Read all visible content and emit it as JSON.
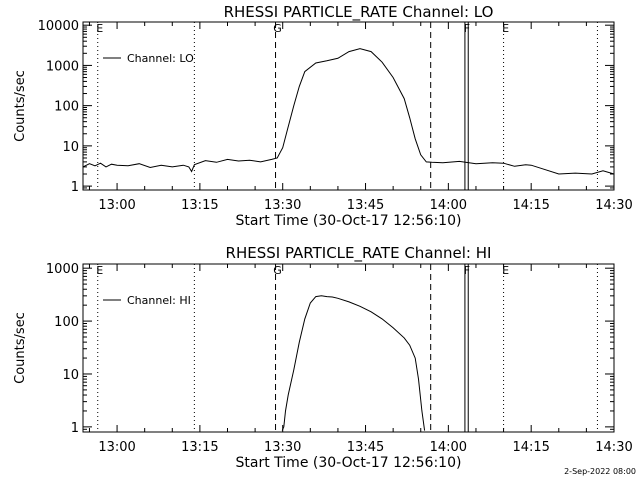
{
  "chart_data": [
    {
      "type": "line",
      "title": "RHESSI PARTICLE_RATE Channel: LO",
      "xlabel": "Start Time (30-Oct-17 12:56:10)",
      "ylabel": "Counts/sec",
      "yscale": "log",
      "xlim_minutes": [
        -6.17,
        90.0
      ],
      "ylim": [
        0.8,
        12000
      ],
      "x_ticks": [
        {
          "minute": 0,
          "label": "13:00"
        },
        {
          "minute": 15,
          "label": "13:15"
        },
        {
          "minute": 30,
          "label": "13:30"
        },
        {
          "minute": 45,
          "label": "13:45"
        },
        {
          "minute": 60,
          "label": "14:00"
        },
        {
          "minute": 75,
          "label": "14:15"
        },
        {
          "minute": 90,
          "label": "14:30"
        }
      ],
      "y_ticks": [
        {
          "value": 1,
          "label": "1"
        },
        {
          "value": 10,
          "label": "10"
        },
        {
          "value": 100,
          "label": "100"
        },
        {
          "value": 1000,
          "label": "1000"
        },
        {
          "value": 10000,
          "label": "10000"
        }
      ],
      "legend": {
        "position": "top-left",
        "entries": [
          "Channel: LO"
        ]
      },
      "markers": [
        {
          "minute": -3.5,
          "label": "E",
          "style": "dotted"
        },
        {
          "minute": 14,
          "label": "",
          "style": "dotted"
        },
        {
          "minute": 28.7,
          "label": "G",
          "style": "dashed"
        },
        {
          "minute": 56.8,
          "label": "",
          "style": "dashed"
        },
        {
          "minute": 63.0,
          "label": "F",
          "style": "solid"
        },
        {
          "minute": 63.6,
          "label": "",
          "style": "solid"
        },
        {
          "minute": 70,
          "label": "E",
          "style": "dotted"
        },
        {
          "minute": 87,
          "label": "",
          "style": "dotted"
        }
      ],
      "series": [
        {
          "name": "Channel: LO",
          "x": [
            -6.17,
            -5,
            -4,
            -3,
            -2,
            -1,
            0,
            2,
            4,
            6,
            8,
            10,
            12,
            13,
            13.5,
            14,
            16,
            18,
            20,
            22,
            24,
            26,
            28,
            29,
            30,
            31,
            32,
            33,
            34,
            36,
            38,
            40,
            42,
            44,
            46,
            48,
            50,
            52,
            53,
            54,
            55,
            56,
            57,
            59,
            62,
            65,
            68,
            70,
            72,
            74,
            75,
            77,
            80,
            83,
            86,
            88,
            90
          ],
          "y": [
            3,
            3.6,
            3.2,
            3.7,
            3.0,
            3.5,
            3.3,
            3.2,
            3.6,
            2.9,
            3.3,
            3.0,
            3.3,
            3.0,
            2.3,
            3.4,
            4.3,
            3.9,
            4.6,
            4.2,
            4.4,
            4.0,
            4.6,
            5,
            9,
            30,
            100,
            300,
            700,
            1150,
            1300,
            1500,
            2200,
            2600,
            2200,
            1200,
            500,
            150,
            50,
            15,
            6,
            4,
            3.9,
            3.8,
            4.1,
            3.6,
            3.8,
            3.7,
            3.1,
            3.4,
            3.3,
            2.7,
            2.0,
            2.1,
            2.0,
            2.4,
            2.0
          ]
        }
      ]
    },
    {
      "type": "line",
      "title": "RHESSI PARTICLE_RATE Channel: HI",
      "xlabel": "Start Time (30-Oct-17 12:56:10)",
      "ylabel": "Counts/sec",
      "yscale": "log",
      "xlim_minutes": [
        -6.17,
        90.0
      ],
      "ylim": [
        0.8,
        1200
      ],
      "x_ticks": [
        {
          "minute": 0,
          "label": "13:00"
        },
        {
          "minute": 15,
          "label": "13:15"
        },
        {
          "minute": 30,
          "label": "13:30"
        },
        {
          "minute": 45,
          "label": "13:45"
        },
        {
          "minute": 60,
          "label": "14:00"
        },
        {
          "minute": 75,
          "label": "14:15"
        },
        {
          "minute": 90,
          "label": "14:30"
        }
      ],
      "y_ticks": [
        {
          "value": 1,
          "label": "1"
        },
        {
          "value": 10,
          "label": "10"
        },
        {
          "value": 100,
          "label": "100"
        },
        {
          "value": 1000,
          "label": "1000"
        }
      ],
      "legend": {
        "position": "top-left",
        "entries": [
          "Channel: HI"
        ]
      },
      "markers": [
        {
          "minute": -3.5,
          "label": "E",
          "style": "dotted"
        },
        {
          "minute": 14,
          "label": "",
          "style": "dotted"
        },
        {
          "minute": 28.7,
          "label": "G",
          "style": "dashed"
        },
        {
          "minute": 56.8,
          "label": "",
          "style": "dashed"
        },
        {
          "minute": 63.0,
          "label": "F",
          "style": "solid"
        },
        {
          "minute": 63.6,
          "label": "",
          "style": "solid"
        },
        {
          "minute": 70,
          "label": "E",
          "style": "dotted"
        },
        {
          "minute": 87,
          "label": "",
          "style": "dotted"
        }
      ],
      "series": [
        {
          "name": "Channel: HI",
          "x": [
            29.9,
            30.2,
            30.5,
            31,
            32,
            33,
            34,
            35,
            36,
            37,
            38,
            39,
            40,
            42,
            44,
            46,
            48,
            50,
            52,
            53,
            54,
            54.6,
            55.2,
            55.7
          ],
          "y": [
            0.85,
            1,
            2,
            4,
            12,
            40,
            110,
            220,
            290,
            300,
            290,
            285,
            270,
            230,
            190,
            150,
            110,
            75,
            48,
            35,
            20,
            8,
            2,
            0.85
          ]
        }
      ]
    }
  ],
  "footer": {
    "date_stamp": "2-Sep-2022 08:00"
  }
}
